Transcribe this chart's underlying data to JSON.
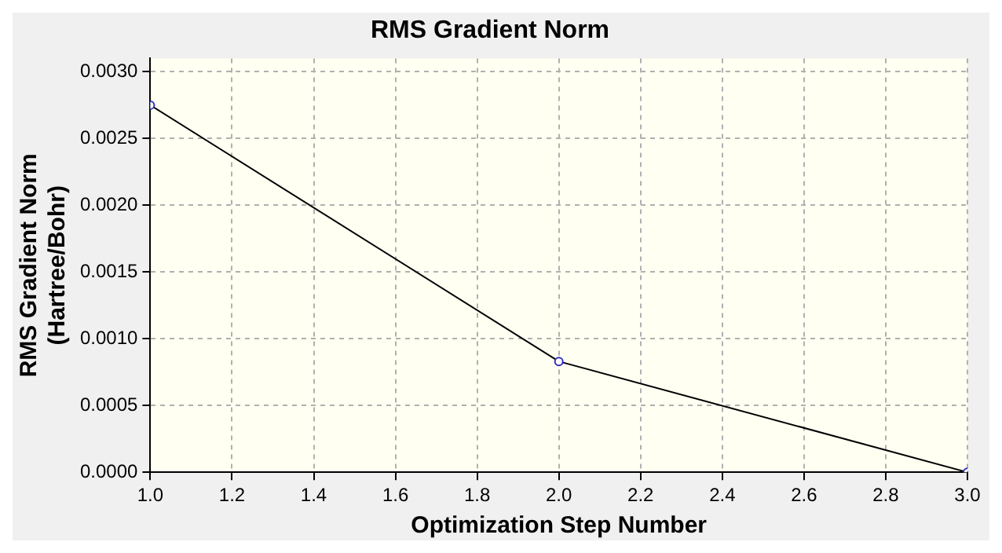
{
  "chart_data": {
    "type": "line",
    "title": "RMS Gradient Norm",
    "xlabel": "Optimization Step Number",
    "ylabel": "RMS Gradient Norm\n(Hartree/Bohr)",
    "x": [
      1,
      2,
      3
    ],
    "series": [
      {
        "color": "#000000",
        "values": [
          0.00275,
          0.00083,
          0.0
        ]
      }
    ],
    "xlim": [
      1,
      3
    ],
    "xticks": [
      {
        "value": 1,
        "label": "1.0"
      },
      {
        "value": 1.2,
        "label": "1.2"
      },
      {
        "value": 1.4,
        "label": "1.4"
      },
      {
        "value": 1.6,
        "label": "1.6"
      },
      {
        "value": 1.8,
        "label": "1.8"
      },
      {
        "value": 2,
        "label": "2.0"
      },
      {
        "value": 2.2,
        "label": "2.2"
      },
      {
        "value": 2.4,
        "label": "2.4"
      },
      {
        "value": 2.6,
        "label": "2.6"
      },
      {
        "value": 2.8,
        "label": "2.8"
      },
      {
        "value": 3,
        "label": "3.0"
      }
    ],
    "ylim": [
      0,
      0.0031
    ],
    "yticks": [
      {
        "value": 0,
        "label": "0.0000"
      },
      {
        "value": 0.0005,
        "label": "0.0005"
      },
      {
        "value": 0.001,
        "label": "0.0010"
      },
      {
        "value": 0.0015,
        "label": "0.0015"
      },
      {
        "value": 0.002,
        "label": "0.0020"
      },
      {
        "value": 0.0025,
        "label": "0.0025"
      },
      {
        "value": 0.003,
        "label": "0.0030"
      }
    ],
    "grid": true,
    "marker": "circle",
    "line_style": "solid"
  }
}
